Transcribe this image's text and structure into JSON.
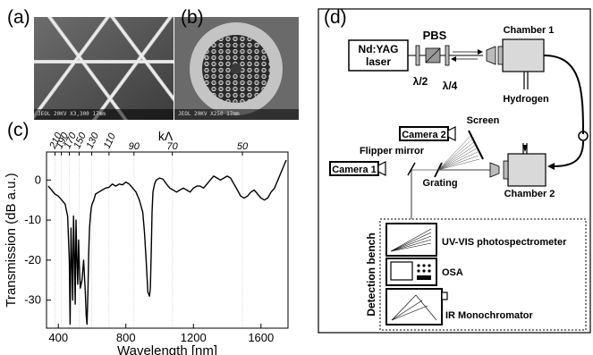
{
  "panels": {
    "a": {
      "label": "(a)",
      "sem_footer": "JEOL  20KV  X3,300  17mm"
    },
    "b": {
      "label": "(b)",
      "sem_footer": "JEOL  20KV  X250  17mm"
    },
    "c": {
      "label": "(c)"
    },
    "d": {
      "label": "(d)"
    }
  },
  "chart_data": {
    "type": "line",
    "xlabel": "Wavelength [nm]",
    "ylabel": "Transmission (dB a.u.)",
    "top_axis_label": "kΛ",
    "xlim": [
      330,
      1760
    ],
    "ylim": [
      -37,
      7
    ],
    "x_ticks": [
      "400",
      "800",
      "1200",
      "1600"
    ],
    "x_tick_values": [
      400,
      800,
      1200,
      1600
    ],
    "y_ticks": [
      "0",
      "-10",
      "-20",
      "-30"
    ],
    "y_tick_values": [
      0,
      -10,
      -20,
      -30
    ],
    "top_ticks": [
      {
        "label": "210",
        "wl": 380
      },
      {
        "label": "190",
        "wl": 418
      },
      {
        "label": "170",
        "wl": 465
      },
      {
        "label": "150",
        "wl": 523
      },
      {
        "label": "130",
        "wl": 598
      },
      {
        "label": "110",
        "wl": 700
      },
      {
        "label": "90",
        "wl": 848
      },
      {
        "label": "70",
        "wl": 1075
      },
      {
        "label": "50",
        "wl": 1490
      }
    ],
    "grid_lines_wl": [
      380,
      418,
      465,
      523,
      598,
      700,
      848,
      1075,
      1490
    ],
    "series": [
      {
        "x": [
          340,
          360,
          380,
          400,
          420,
          440,
          455,
          465,
          470,
          475,
          480,
          485,
          490,
          495,
          500,
          505,
          510,
          515,
          520,
          525,
          530,
          540,
          550,
          560,
          565,
          570,
          575,
          580,
          585,
          590,
          595,
          600,
          610,
          620,
          640,
          660,
          680,
          700,
          720,
          740,
          760,
          780,
          800,
          820,
          840,
          860,
          880,
          900,
          910,
          920,
          930,
          940,
          945,
          950,
          955,
          960,
          970,
          980,
          1000,
          1020,
          1040,
          1060,
          1080,
          1100,
          1120,
          1140,
          1160,
          1180,
          1200,
          1220,
          1240,
          1260,
          1280,
          1300,
          1320,
          1340,
          1360,
          1380,
          1400,
          1420,
          1440,
          1460,
          1480,
          1500,
          1520,
          1540,
          1560,
          1580,
          1600,
          1620,
          1640,
          1660,
          1680,
          1700,
          1720,
          1740,
          1750
        ],
        "y": [
          -1.5,
          -2.5,
          -3.5,
          -4.0,
          -5.0,
          -6.0,
          -9.0,
          -20.0,
          -36.0,
          -12.0,
          -20.0,
          -30.0,
          -9.0,
          -19.0,
          -31.0,
          -10.0,
          -20.0,
          -26.0,
          -15.0,
          -22.0,
          -27.0,
          -25.0,
          -20.0,
          -28.0,
          -34.0,
          -36.0,
          -28.0,
          -18.0,
          -12.0,
          -9.0,
          -7.0,
          -6.0,
          -5.0,
          -3.5,
          -3.0,
          -2.5,
          -2.0,
          -1.8,
          -1.0,
          -1.5,
          -1.0,
          -1.2,
          -0.5,
          -1.0,
          -2.0,
          -3.0,
          -5.0,
          -8.0,
          -13.0,
          -20.0,
          -28.0,
          -29.0,
          -27.0,
          -18.0,
          -8.0,
          -3.0,
          -1.0,
          0.0,
          0.5,
          0.2,
          -1.0,
          -2.0,
          -2.5,
          -3.0,
          -2.5,
          -2.0,
          -2.5,
          -3.0,
          -2.0,
          -1.5,
          -1.5,
          -2.0,
          -1.0,
          0.0,
          1.0,
          0.5,
          0.0,
          0.5,
          1.0,
          0.5,
          -1.0,
          -2.5,
          -4.0,
          -4.5,
          -4.0,
          -3.0,
          -2.5,
          -3.5,
          -4.5,
          -5.0,
          -4.5,
          -3.0,
          -2.0,
          0.0,
          2.0,
          4.0,
          5.0
        ]
      }
    ]
  },
  "setup": {
    "laser_line1": "Nd:YAG",
    "laser_line2": "laser",
    "pbs": "PBS",
    "half_wave": "λ/2",
    "quarter_wave": "λ/4",
    "chamber1": "Chamber 1",
    "hydrogen": "Hydrogen",
    "screen": "Screen",
    "camera2": "Camera 2",
    "flipper": "Flipper mirror",
    "camera1": "Camera 1",
    "grating": "Grating",
    "chamber2": "Chamber 2",
    "detection_bench": "Detection bench",
    "uvvis": "UV-VIS photospectrometer",
    "osa": "OSA",
    "ir": "IR Monochromator"
  }
}
